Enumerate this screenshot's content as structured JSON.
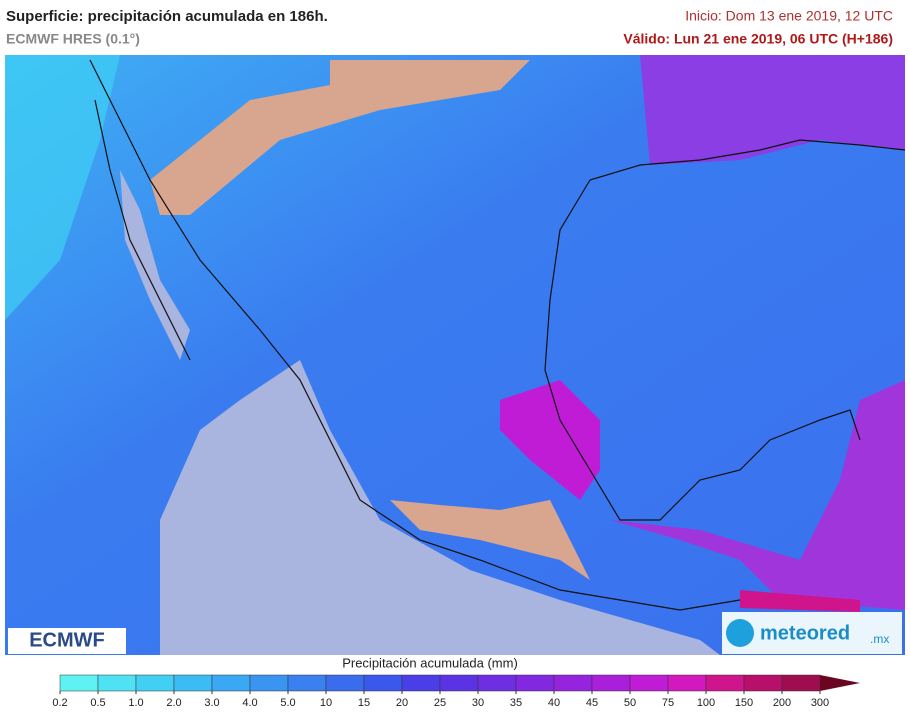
{
  "header": {
    "title": "Superficie: precipitación acumulada en 186h.",
    "model": "ECMWF HRES (0.1°)",
    "init": "Inicio: Dom 13 ene 2019, 12 UTC",
    "valid": "Válido: Lun 21 ene 2019, 06 UTC (H+186)"
  },
  "logos": {
    "left": "ECMWF",
    "right": "meteored",
    "right_suffix": ".mx"
  },
  "legend": {
    "title": "Precipitación acumulada (mm)",
    "ticks": [
      0.2,
      0.5,
      {
        "value": 1,
        "label": "1.0"
      },
      {
        "value": 2,
        "label": "2.0"
      },
      {
        "value": 3,
        "label": "3.0"
      },
      {
        "value": 4,
        "label": "4.0"
      },
      {
        "value": 5,
        "label": "5.0"
      },
      10,
      15,
      20,
      25,
      30,
      35,
      40,
      45,
      50,
      75,
      100,
      150,
      200,
      300
    ],
    "colors": [
      "#5ef2f2",
      "#4ee2f4",
      "#42cff4",
      "#3cbcf4",
      "#3aa8f4",
      "#3a94f2",
      "#3a80f0",
      "#3a6cee",
      "#3a58ec",
      "#4a3ee8",
      "#5a34e4",
      "#6e2ee2",
      "#8228e0",
      "#9624de",
      "#aa20da",
      "#c01cd6",
      "#d418c0",
      "#d0148c",
      "#b8106a",
      "#a00c50",
      "#6a0620"
    ]
  }
}
